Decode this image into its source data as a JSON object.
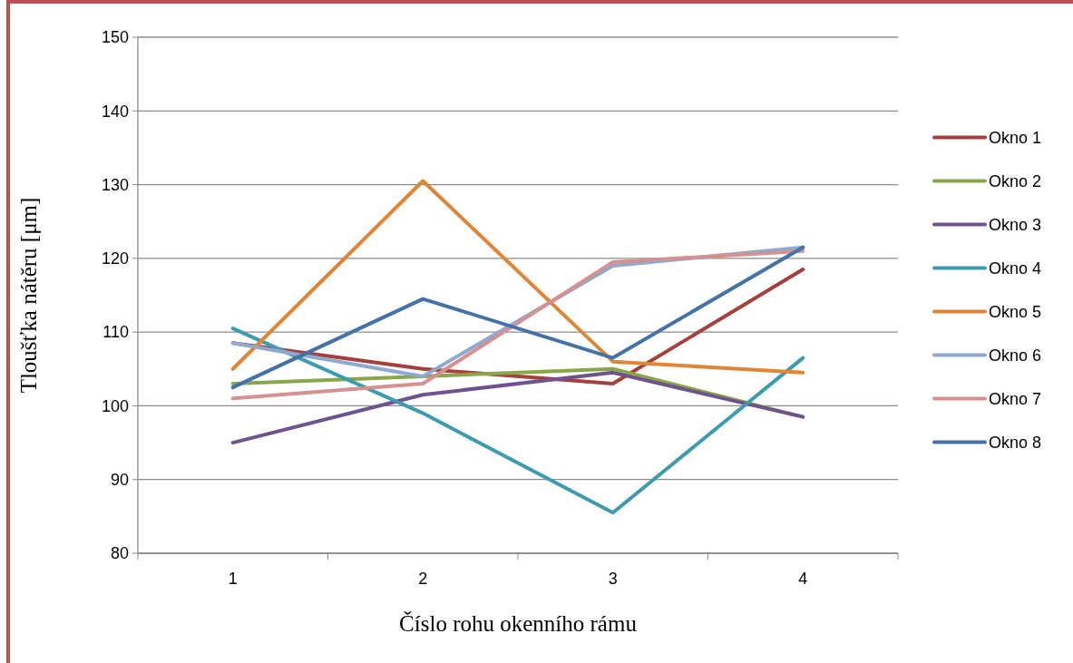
{
  "chart_data": {
    "type": "line",
    "xlabel": "Číslo rohu okenního rámu",
    "ylabel": "Tloušťka nátěru [μm]",
    "categories": [
      "1",
      "2",
      "3",
      "4"
    ],
    "ylim": [
      80,
      150
    ],
    "yticks": [
      80,
      90,
      100,
      110,
      120,
      130,
      140,
      150
    ],
    "grid": "y",
    "legend": "right",
    "marker": "none",
    "line_style": "solid",
    "series": [
      {
        "name": "Okno 1",
        "color": "#a5403d",
        "values": [
          108.5,
          105,
          103,
          118.5
        ]
      },
      {
        "name": "Okno 2",
        "color": "#8aa64a",
        "values": [
          103,
          104,
          105,
          98.5
        ]
      },
      {
        "name": "Okno 3",
        "color": "#6f538f",
        "values": [
          95,
          101.5,
          104.5,
          98.5
        ]
      },
      {
        "name": "Okno 4",
        "color": "#3d9bb0",
        "values": [
          110.5,
          99,
          85.5,
          106.5
        ]
      },
      {
        "name": "Okno 5",
        "color": "#e08436",
        "values": [
          105,
          130.5,
          106,
          104.5
        ]
      },
      {
        "name": "Okno 6",
        "color": "#8fa9d1",
        "values": [
          108.5,
          104,
          119,
          121.5
        ]
      },
      {
        "name": "Okno 7",
        "color": "#d4918f",
        "values": [
          101,
          103,
          119.5,
          121
        ]
      },
      {
        "name": "Okno 8",
        "color": "#4472a8",
        "values": [
          102.5,
          114.5,
          106.5,
          121.5
        ]
      }
    ]
  }
}
